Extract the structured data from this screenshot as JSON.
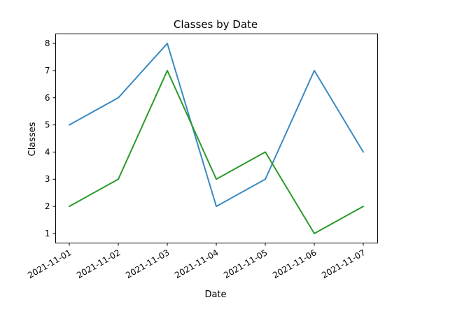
{
  "chart_data": {
    "type": "line",
    "title": "Classes by Date",
    "xlabel": "Date",
    "ylabel": "Classes",
    "x": [
      "2021-11-01",
      "2021-11-02",
      "2021-11-03",
      "2021-11-04",
      "2021-11-05",
      "2021-11-06",
      "2021-11-07"
    ],
    "yticks": [
      1,
      2,
      3,
      4,
      5,
      6,
      7,
      8
    ],
    "ylim": [
      0.65,
      8.35
    ],
    "grid": false,
    "series": [
      {
        "color": "#3a8ac2",
        "values": [
          5,
          6,
          8,
          2,
          3,
          7,
          4
        ]
      },
      {
        "color": "#2a9a2a",
        "values": [
          2,
          3,
          7,
          3,
          4,
          1,
          2
        ]
      }
    ]
  }
}
